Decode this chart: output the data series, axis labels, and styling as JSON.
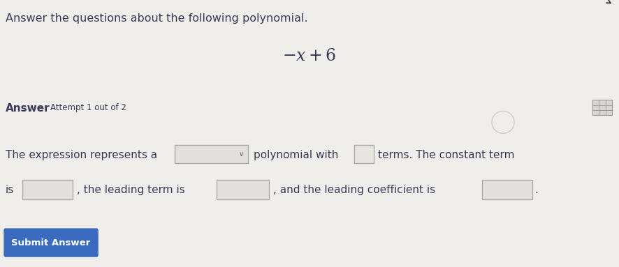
{
  "background_color": "#f0eeeb",
  "title_text": "Answer the questions about the following polynomial.",
  "polynomial": "$-x+6$",
  "answer_label": "Answer",
  "attempt_text": "Attempt 1 out of 2",
  "text_color": "#3a3a5a",
  "button_text": "Submit Answer",
  "button_color": "#3a6bbf",
  "button_text_color": "#ffffff",
  "box_fill": "#e8e6e2",
  "box_edge": "#999999",
  "title_fontsize": 11.5,
  "body_fontsize": 11,
  "poly_fontsize": 17
}
